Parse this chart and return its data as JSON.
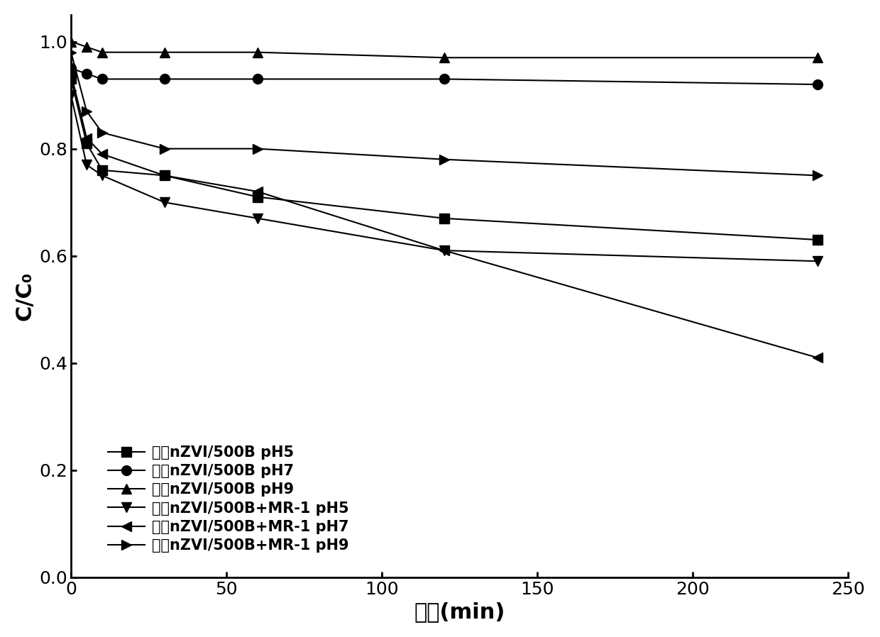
{
  "title": "",
  "xlabel": "时间(min)",
  "ylabel": "C/C₀",
  "xlim": [
    0,
    250
  ],
  "ylim": [
    0.0,
    1.05
  ],
  "xticks": [
    0,
    50,
    100,
    150,
    200,
    250
  ],
  "yticks": [
    0.0,
    0.2,
    0.4,
    0.6,
    0.8,
    1.0
  ],
  "series": [
    {
      "label": "老化nZVI/500B pH5",
      "x": [
        0,
        5,
        10,
        30,
        60,
        120,
        240
      ],
      "y": [
        0.93,
        0.81,
        0.76,
        0.75,
        0.71,
        0.67,
        0.63
      ],
      "marker": "s",
      "color": "#000000",
      "linestyle": "-"
    },
    {
      "label": "老化nZVI/500B pH7",
      "x": [
        0,
        5,
        10,
        30,
        60,
        120,
        240
      ],
      "y": [
        0.95,
        0.94,
        0.93,
        0.93,
        0.93,
        0.93,
        0.92
      ],
      "marker": "o",
      "color": "#000000",
      "linestyle": "-"
    },
    {
      "label": "老化nZVI/500B pH9",
      "x": [
        0,
        5,
        10,
        30,
        60,
        120,
        240
      ],
      "y": [
        1.0,
        0.99,
        0.98,
        0.98,
        0.98,
        0.97,
        0.97
      ],
      "marker": "^",
      "color": "#000000",
      "linestyle": "-"
    },
    {
      "label": "老化nZVI/500B+MR-1 pH5",
      "x": [
        0,
        5,
        10,
        30,
        60,
        120,
        240
      ],
      "y": [
        0.9,
        0.77,
        0.75,
        0.7,
        0.67,
        0.61,
        0.59
      ],
      "marker": "v",
      "color": "#000000",
      "linestyle": "-"
    },
    {
      "label": "老化nZVI/500B+MR-1 pH7",
      "x": [
        0,
        5,
        10,
        30,
        60,
        120,
        240
      ],
      "y": [
        0.94,
        0.82,
        0.79,
        0.75,
        0.72,
        0.61,
        0.41
      ],
      "marker": "<",
      "color": "#000000",
      "linestyle": "-"
    },
    {
      "label": "老化nZVI/500B+MR-1 pH9",
      "x": [
        0,
        5,
        10,
        30,
        60,
        120,
        240
      ],
      "y": [
        0.98,
        0.87,
        0.83,
        0.8,
        0.8,
        0.78,
        0.75
      ],
      "marker": ">",
      "color": "#000000",
      "linestyle": "-"
    }
  ],
  "background_color": "#ffffff",
  "markersize": 10,
  "linewidth": 1.5,
  "fontsize_legend": 15,
  "fontsize_axis_label": 22,
  "fontsize_ticks": 18
}
